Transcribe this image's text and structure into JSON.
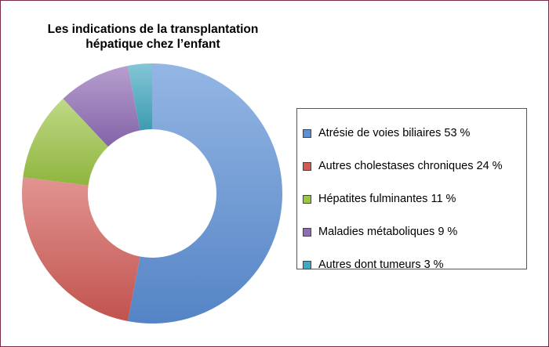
{
  "chart_data": {
    "type": "pie",
    "variant": "donut",
    "title": [
      "Les indications de la transplantation",
      "hépatique chez l’enfant"
    ],
    "categories": [
      "Atrésie de voies biliaires 53 %",
      "Autres cholestases chroniques  24 %",
      "Hépatites fulminantes 11 %",
      "Maladies métaboliques 9 %",
      "Autres dont tumeurs 3 %"
    ],
    "values": [
      53,
      24,
      11,
      9,
      3
    ],
    "colors": [
      "#5b8fd6",
      "#d25a55",
      "#9cc545",
      "#8e6cb5",
      "#42a8c0"
    ],
    "legend_position": "right"
  }
}
